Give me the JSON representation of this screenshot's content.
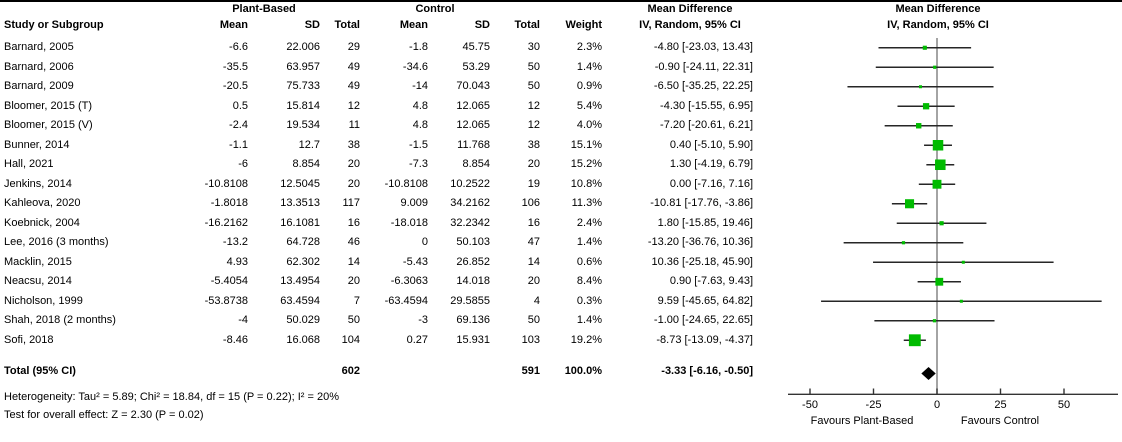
{
  "columns": {
    "study": "Study or Subgroup",
    "group1": "Plant-Based",
    "group2": "Control",
    "mean": "Mean",
    "sd": "SD",
    "total": "Total",
    "weight": "Weight",
    "md_line1": "Mean Difference",
    "md_line2": "IV, Random, 95% CI"
  },
  "totals": {
    "label": "Total (95% CI)",
    "total1": "602",
    "total2": "591",
    "weight": "100.0%",
    "ci_text": "-3.33 [-6.16, -0.50]"
  },
  "footnotes": {
    "heterogeneity": "Heterogeneity: Tau² = 5.89; Chi² = 18.84, df = 15 (P = 0.22); I² = 20%",
    "overall_effect": "Test for overall effect: Z = 2.30 (P = 0.02)"
  },
  "chart_data": {
    "type": "forest",
    "title": "Mean Difference, IV, Random, 95% CI",
    "effect_color": "#00BB00",
    "pooled_color": "#000000",
    "axis": {
      "ticks": [
        -50,
        -25,
        0,
        25,
        50
      ],
      "xlim": [
        -58,
        71
      ],
      "left_label": "Favours Plant-Based",
      "right_label": "Favours Control"
    },
    "studies": [
      {
        "name": "Barnard, 2005",
        "mean1": "-6.6",
        "sd1": "22.006",
        "total1": "29",
        "mean2": "-1.8",
        "sd2": "45.75",
        "total2": "30",
        "weight": "2.3%",
        "w": 2.3,
        "ci_text": "-4.80 [-23.03, 13.43]",
        "md": -4.8,
        "lo": -23.03,
        "hi": 13.43
      },
      {
        "name": "Barnard, 2006",
        "mean1": "-35.5",
        "sd1": "63.957",
        "total1": "49",
        "mean2": "-34.6",
        "sd2": "53.29",
        "total2": "50",
        "weight": "1.4%",
        "w": 1.4,
        "ci_text": "-0.90 [-24.11, 22.31]",
        "md": -0.9,
        "lo": -24.11,
        "hi": 22.31
      },
      {
        "name": "Barnard, 2009",
        "mean1": "-20.5",
        "sd1": "75.733",
        "total1": "49",
        "mean2": "-14",
        "sd2": "70.043",
        "total2": "50",
        "weight": "0.9%",
        "w": 0.9,
        "ci_text": "-6.50 [-35.25, 22.25]",
        "md": -6.5,
        "lo": -35.25,
        "hi": 22.25
      },
      {
        "name": "Bloomer, 2015 (T)",
        "mean1": "0.5",
        "sd1": "15.814",
        "total1": "12",
        "mean2": "4.8",
        "sd2": "12.065",
        "total2": "12",
        "weight": "5.4%",
        "w": 5.4,
        "ci_text": "-4.30 [-15.55, 6.95]",
        "md": -4.3,
        "lo": -15.55,
        "hi": 6.95
      },
      {
        "name": "Bloomer, 2015 (V)",
        "mean1": "-2.4",
        "sd1": "19.534",
        "total1": "11",
        "mean2": "4.8",
        "sd2": "12.065",
        "total2": "12",
        "weight": "4.0%",
        "w": 4.0,
        "ci_text": "-7.20 [-20.61, 6.21]",
        "md": -7.2,
        "lo": -20.61,
        "hi": 6.21
      },
      {
        "name": "Bunner, 2014",
        "mean1": "-1.1",
        "sd1": "12.7",
        "total1": "38",
        "mean2": "-1.5",
        "sd2": "11.768",
        "total2": "38",
        "weight": "15.1%",
        "w": 15.1,
        "ci_text": "0.40 [-5.10, 5.90]",
        "md": 0.4,
        "lo": -5.1,
        "hi": 5.9
      },
      {
        "name": "Hall, 2021",
        "mean1": "-6",
        "sd1": "8.854",
        "total1": "20",
        "mean2": "-7.3",
        "sd2": "8.854",
        "total2": "20",
        "weight": "15.2%",
        "w": 15.2,
        "ci_text": "1.30 [-4.19, 6.79]",
        "md": 1.3,
        "lo": -4.19,
        "hi": 6.79
      },
      {
        "name": "Jenkins, 2014",
        "mean1": "-10.8108",
        "sd1": "12.5045",
        "total1": "20",
        "mean2": "-10.8108",
        "sd2": "10.2522",
        "total2": "19",
        "weight": "10.8%",
        "w": 10.8,
        "ci_text": "0.00 [-7.16, 7.16]",
        "md": 0.0,
        "lo": -7.16,
        "hi": 7.16
      },
      {
        "name": "Kahleova, 2020",
        "mean1": "-1.8018",
        "sd1": "13.3513",
        "total1": "117",
        "mean2": "9.009",
        "sd2": "34.2162",
        "total2": "106",
        "weight": "11.3%",
        "w": 11.3,
        "ci_text": "-10.81 [-17.76, -3.86]",
        "md": -10.81,
        "lo": -17.76,
        "hi": -3.86
      },
      {
        "name": "Koebnick, 2004",
        "mean1": "-16.2162",
        "sd1": "16.1081",
        "total1": "16",
        "mean2": "-18.018",
        "sd2": "32.2342",
        "total2": "16",
        "weight": "2.4%",
        "w": 2.4,
        "ci_text": "1.80 [-15.85, 19.46]",
        "md": 1.8,
        "lo": -15.85,
        "hi": 19.46
      },
      {
        "name": "Lee, 2016 (3 months)",
        "mean1": "-13.2",
        "sd1": "64.728",
        "total1": "46",
        "mean2": "0",
        "sd2": "50.103",
        "total2": "47",
        "weight": "1.4%",
        "w": 1.4,
        "ci_text": "-13.20 [-36.76, 10.36]",
        "md": -13.2,
        "lo": -36.76,
        "hi": 10.36
      },
      {
        "name": "Macklin, 2015",
        "mean1": "4.93",
        "sd1": "62.302",
        "total1": "14",
        "mean2": "-5.43",
        "sd2": "26.852",
        "total2": "14",
        "weight": "0.6%",
        "w": 0.6,
        "ci_text": "10.36 [-25.18, 45.90]",
        "md": 10.36,
        "lo": -25.18,
        "hi": 45.9
      },
      {
        "name": "Neacsu, 2014",
        "mean1": "-5.4054",
        "sd1": "13.4954",
        "total1": "20",
        "mean2": "-6.3063",
        "sd2": "14.018",
        "total2": "20",
        "weight": "8.4%",
        "w": 8.4,
        "ci_text": "0.90 [-7.63, 9.43]",
        "md": 0.9,
        "lo": -7.63,
        "hi": 9.43
      },
      {
        "name": "Nicholson, 1999",
        "mean1": "-53.8738",
        "sd1": "63.4594",
        "total1": "7",
        "mean2": "-63.4594",
        "sd2": "29.5855",
        "total2": "4",
        "weight": "0.3%",
        "w": 0.3,
        "ci_text": "9.59 [-45.65, 64.82]",
        "md": 9.59,
        "lo": -45.65,
        "hi": 64.82
      },
      {
        "name": "Shah, 2018 (2 months)",
        "mean1": "-4",
        "sd1": "50.029",
        "total1": "50",
        "mean2": "-3",
        "sd2": "69.136",
        "total2": "50",
        "weight": "1.4%",
        "w": 1.4,
        "ci_text": "-1.00 [-24.65, 22.65]",
        "md": -1.0,
        "lo": -24.65,
        "hi": 22.65
      },
      {
        "name": "Sofi, 2018",
        "mean1": "-8.46",
        "sd1": "16.068",
        "total1": "104",
        "mean2": "0.27",
        "sd2": "15.931",
        "total2": "103",
        "weight": "19.2%",
        "w": 19.2,
        "ci_text": "-8.73 [-13.09, -4.37]",
        "md": -8.73,
        "lo": -13.09,
        "hi": -4.37
      }
    ],
    "pooled": {
      "md": -3.33,
      "lo": -6.16,
      "hi": -0.5,
      "weight": 100.0
    }
  }
}
